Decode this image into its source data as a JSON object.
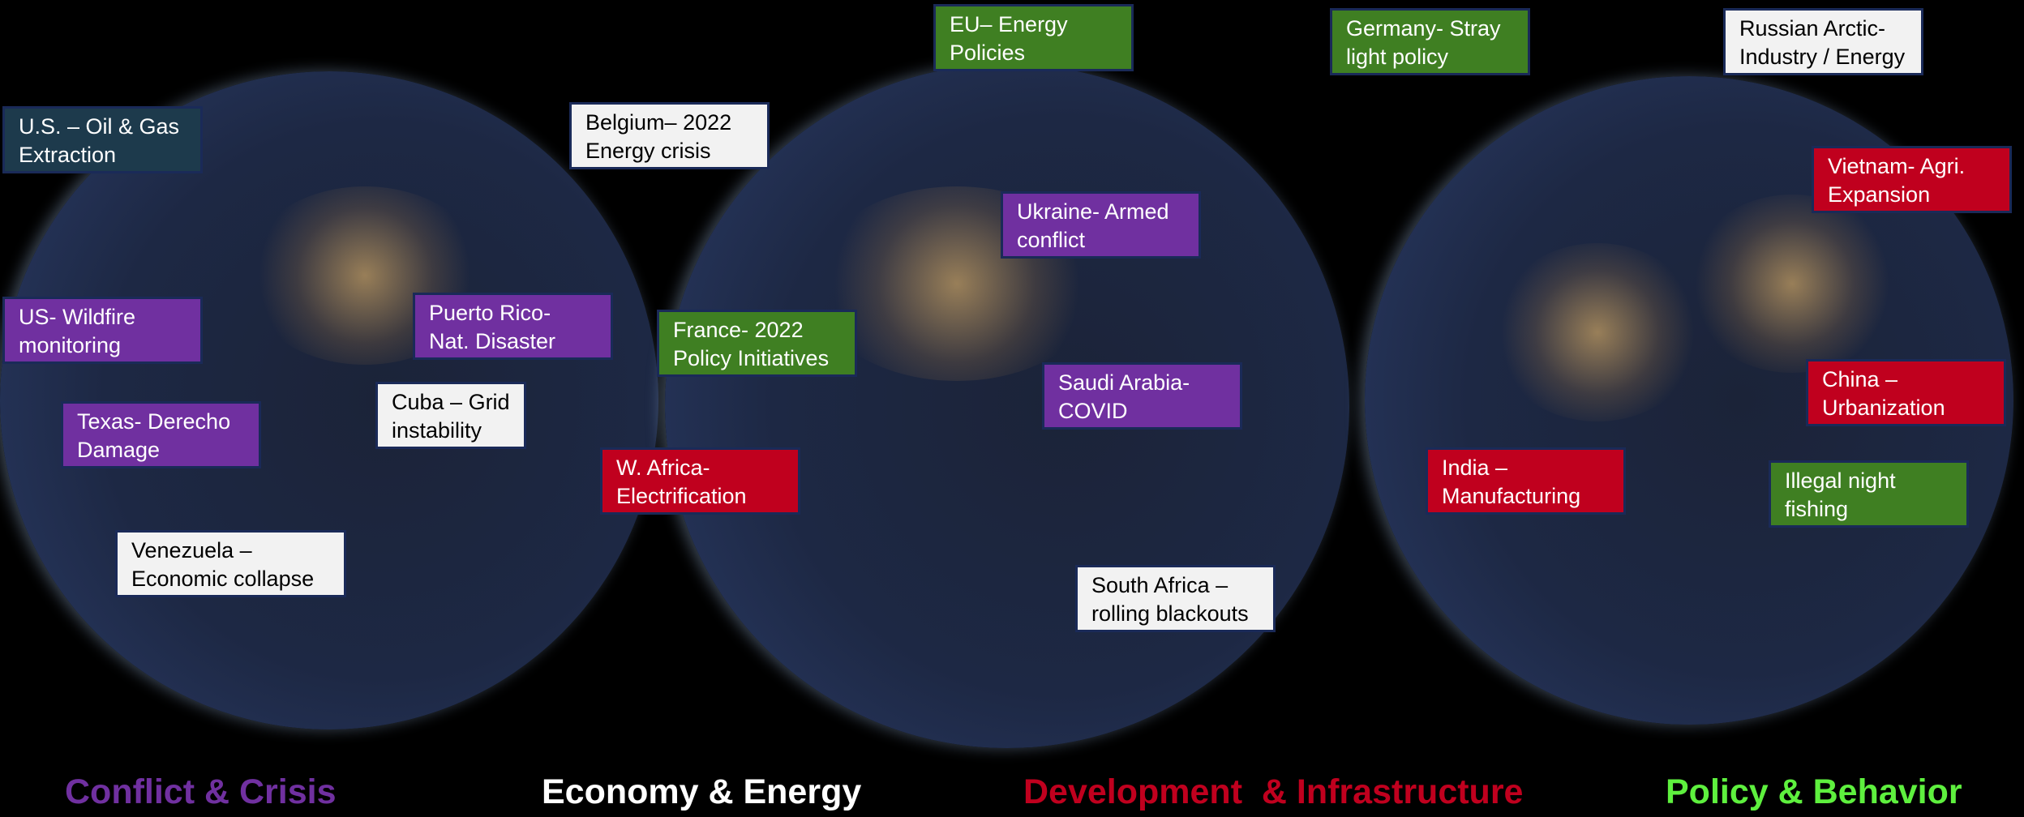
{
  "labels": [
    {
      "lines": [
        "U.S. – Oil & Gas",
        "Extraction"
      ]
    },
    {
      "lines": [
        "US- Wildfire",
        "monitoring"
      ]
    },
    {
      "lines": [
        "Texas- Derecho",
        "Damage"
      ]
    },
    {
      "lines": [
        "Venezuela –",
        "Economic collapse"
      ]
    },
    {
      "lines": [
        "Cuba – Grid",
        "instability"
      ]
    },
    {
      "lines": [
        "Puerto Rico-",
        "Nat. Disaster"
      ]
    },
    {
      "lines": [
        "Belgium– 2022",
        "Energy crisis"
      ]
    },
    {
      "lines": [
        "EU– Energy",
        "Policies"
      ]
    },
    {
      "lines": [
        "France- 2022",
        "Policy Initiatives"
      ]
    },
    {
      "lines": [
        "W. Africa-",
        "Electrification"
      ]
    },
    {
      "lines": [
        "Ukraine- Armed",
        "conflict"
      ]
    },
    {
      "lines": [
        "Saudi Arabia-",
        "COVID"
      ]
    },
    {
      "lines": [
        "South Africa –",
        "rolling blackouts"
      ]
    },
    {
      "lines": [
        "Germany- Stray",
        "light policy"
      ]
    },
    {
      "lines": [
        "Russian Arctic-",
        "Industry / Energy"
      ]
    },
    {
      "lines": [
        "Vietnam- Agri.",
        "Expansion"
      ]
    },
    {
      "lines": [
        "China –",
        "Urbanization"
      ]
    },
    {
      "lines": [
        "Illegal night",
        "fishing"
      ]
    },
    {
      "lines": [
        "India –",
        "Manufacturing"
      ]
    }
  ],
  "categories": [
    "Conflict & Crisis",
    "Economy & Energy",
    "Development  & Infrastructure",
    "Policy & Behavior"
  ]
}
